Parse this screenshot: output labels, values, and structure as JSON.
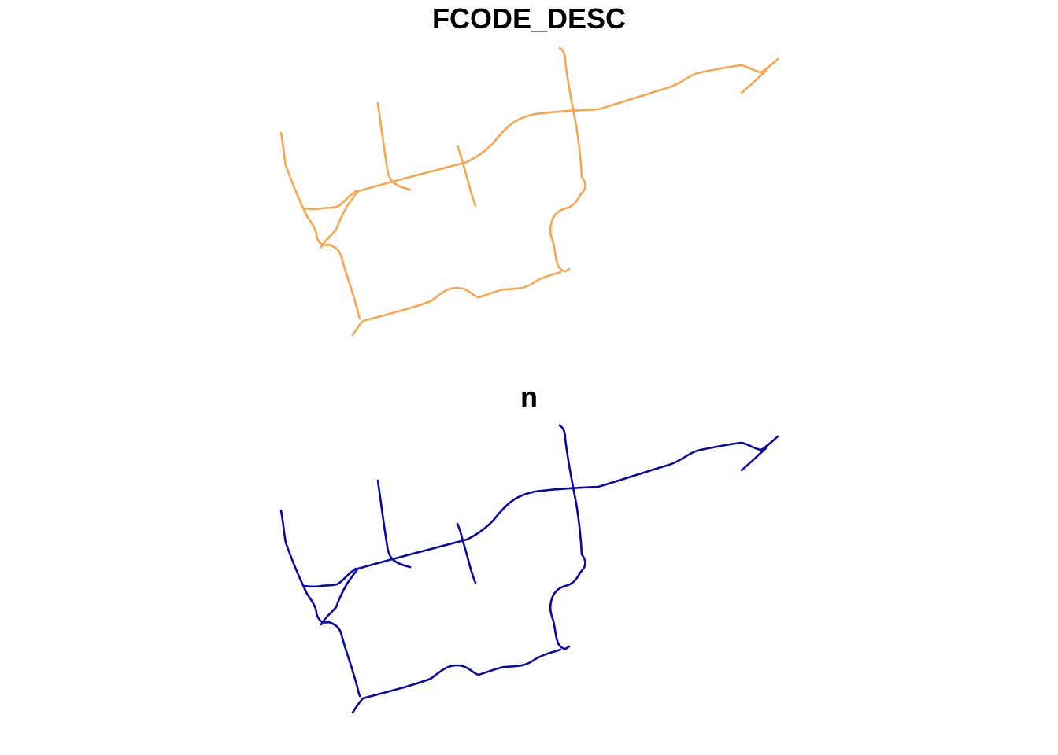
{
  "panels": [
    {
      "title": "FCODE_DESC",
      "line_color": "#F9A54F"
    },
    {
      "title": "n",
      "line_color": "#0808A8"
    }
  ]
}
